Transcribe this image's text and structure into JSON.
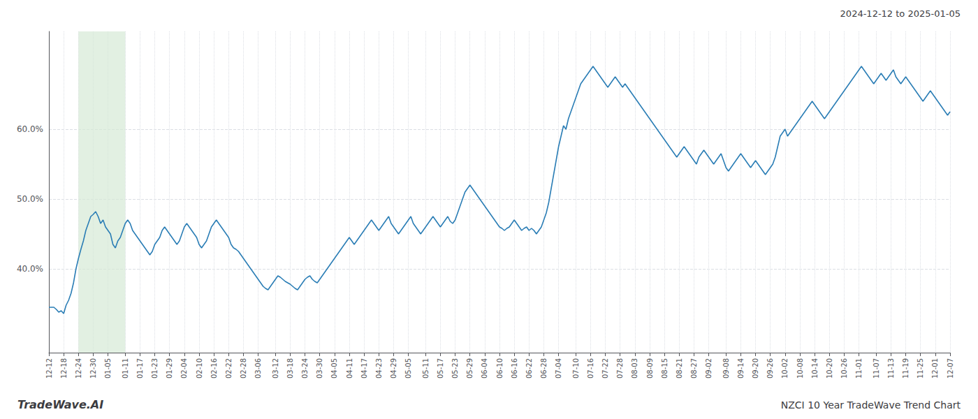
{
  "chart_data": {
    "type": "line",
    "title": "NZCI 10 Year TradeWave Trend Chart",
    "subtitle": "2024-12-12 to 2025-01-05",
    "annotations": [
      "TradeWave.AI"
    ],
    "color": "#2a7db5",
    "grid": true,
    "ylim": [
      28,
      74
    ],
    "yticks": [
      {
        "value": 40,
        "label": "40.0%"
      },
      {
        "value": 50,
        "label": "50.0%"
      },
      {
        "value": 60,
        "label": "60.0%"
      }
    ],
    "shade": {
      "from": "12-24",
      "to": "01-11",
      "color": "#d6ead6"
    },
    "categories": [
      "12-12",
      null,
      null,
      null,
      null,
      null,
      "12-18",
      null,
      null,
      null,
      null,
      null,
      "12-24",
      null,
      null,
      null,
      null,
      null,
      "12-30",
      null,
      null,
      null,
      null,
      null,
      "01-05",
      null,
      null,
      null,
      null,
      null,
      null,
      "01-11",
      null,
      null,
      null,
      null,
      null,
      "01-17",
      null,
      null,
      null,
      null,
      null,
      "01-23",
      null,
      null,
      null,
      null,
      null,
      "01-29",
      null,
      null,
      null,
      null,
      null,
      "02-04",
      null,
      null,
      null,
      null,
      null,
      "02-10",
      null,
      null,
      null,
      null,
      null,
      "02-16",
      null,
      null,
      null,
      null,
      null,
      "02-22",
      null,
      null,
      null,
      null,
      null,
      "02-28",
      null,
      null,
      null,
      null,
      null,
      "03-06",
      null,
      null,
      null,
      null,
      null,
      null,
      "03-12",
      null,
      null,
      null,
      null,
      null,
      "03-18",
      null,
      null,
      null,
      null,
      null,
      "03-24",
      null,
      null,
      null,
      null,
      null,
      "03-30",
      null,
      null,
      null,
      null,
      null,
      "04-05",
      null,
      null,
      null,
      null,
      null,
      "04-11",
      null,
      null,
      null,
      null,
      null,
      "04-17",
      null,
      null,
      null,
      null,
      null,
      "04-23",
      null,
      null,
      null,
      null,
      null,
      "04-29",
      null,
      null,
      null,
      null,
      null,
      "05-05",
      null,
      null,
      null,
      null,
      null,
      null,
      "05-11",
      null,
      null,
      null,
      null,
      null,
      "05-17",
      null,
      null,
      null,
      null,
      null,
      "05-23",
      null,
      null,
      null,
      null,
      null,
      "05-29",
      null,
      null,
      null,
      null,
      null,
      "06-04",
      null,
      null,
      null,
      null,
      null,
      "06-10",
      null,
      null,
      null,
      null,
      null,
      "06-16",
      null,
      null,
      null,
      null,
      null,
      "06-22",
      null,
      null,
      null,
      null,
      null,
      "06-28",
      null,
      null,
      null,
      null,
      null,
      "07-04",
      null,
      null,
      null,
      null,
      null,
      null,
      "07-10",
      null,
      null,
      null,
      null,
      null,
      "07-16",
      null,
      null,
      null,
      null,
      null,
      "07-22",
      null,
      null,
      null,
      null,
      null,
      "07-28",
      null,
      null,
      null,
      null,
      null,
      "08-03",
      null,
      null,
      null,
      null,
      null,
      "08-09",
      null,
      null,
      null,
      null,
      null,
      "08-15",
      null,
      null,
      null,
      null,
      null,
      "08-21",
      null,
      null,
      null,
      null,
      null,
      "08-27",
      null,
      null,
      null,
      null,
      null,
      "09-02",
      null,
      null,
      null,
      null,
      null,
      null,
      "09-08",
      null,
      null,
      null,
      null,
      null,
      "09-14",
      null,
      null,
      null,
      null,
      null,
      "09-20",
      null,
      null,
      null,
      null,
      null,
      "09-26",
      null,
      null,
      null,
      null,
      null,
      "10-02",
      null,
      null,
      null,
      null,
      null,
      "10-08",
      null,
      null,
      null,
      null,
      null,
      "10-14",
      null,
      null,
      null,
      null,
      null,
      "10-20",
      null,
      null,
      null,
      null,
      null,
      "10-26",
      null,
      null,
      null,
      null,
      null,
      "11-01",
      null,
      null,
      null,
      null,
      null,
      null,
      "11-07",
      null,
      null,
      null,
      null,
      null,
      "11-13",
      null,
      null,
      null,
      null,
      null,
      "11-19",
      null,
      null,
      null,
      null,
      null,
      "11-25",
      null,
      null,
      null,
      null,
      null,
      "12-01",
      null,
      null,
      null,
      null,
      null,
      "12-07"
    ],
    "values": [
      34.5,
      34.5,
      34.5,
      34.2,
      33.8,
      34.0,
      33.6,
      34.8,
      35.5,
      36.5,
      38.0,
      40.0,
      41.5,
      42.8,
      44.0,
      45.5,
      46.5,
      47.5,
      47.8,
      48.2,
      47.5,
      46.5,
      47.0,
      46.0,
      45.5,
      45.0,
      43.5,
      43.0,
      44.0,
      44.5,
      45.5,
      46.5,
      47.0,
      46.5,
      45.5,
      45.0,
      44.5,
      44.0,
      43.5,
      43.0,
      42.5,
      42.0,
      42.5,
      43.5,
      44.0,
      44.5,
      45.5,
      46.0,
      45.5,
      45.0,
      44.5,
      44.0,
      43.5,
      44.0,
      45.0,
      46.0,
      46.5,
      46.0,
      45.5,
      45.0,
      44.5,
      43.5,
      43.0,
      43.5,
      44.0,
      45.0,
      46.0,
      46.5,
      47.0,
      46.5,
      46.0,
      45.5,
      45.0,
      44.5,
      43.5,
      43.0,
      42.8,
      42.5,
      42.0,
      41.5,
      41.0,
      40.5,
      40.0,
      39.5,
      39.0,
      38.5,
      38.0,
      37.5,
      37.2,
      37.0,
      37.5,
      38.0,
      38.5,
      39.0,
      38.8,
      38.5,
      38.2,
      38.0,
      37.8,
      37.5,
      37.2,
      37.0,
      37.5,
      38.0,
      38.5,
      38.8,
      39.0,
      38.5,
      38.2,
      38.0,
      38.5,
      39.0,
      39.5,
      40.0,
      40.5,
      41.0,
      41.5,
      42.0,
      42.5,
      43.0,
      43.5,
      44.0,
      44.5,
      44.0,
      43.5,
      44.0,
      44.5,
      45.0,
      45.5,
      46.0,
      46.5,
      47.0,
      46.5,
      46.0,
      45.5,
      46.0,
      46.5,
      47.0,
      47.5,
      46.5,
      46.0,
      45.5,
      45.0,
      45.5,
      46.0,
      46.5,
      47.0,
      47.5,
      46.5,
      46.0,
      45.5,
      45.0,
      45.5,
      46.0,
      46.5,
      47.0,
      47.5,
      47.0,
      46.5,
      46.0,
      46.5,
      47.0,
      47.5,
      46.8,
      46.5,
      47.0,
      48.0,
      49.0,
      50.0,
      51.0,
      51.5,
      52.0,
      51.5,
      51.0,
      50.5,
      50.0,
      49.5,
      49.0,
      48.5,
      48.0,
      47.5,
      47.0,
      46.5,
      46.0,
      45.8,
      45.5,
      45.8,
      46.0,
      46.5,
      47.0,
      46.5,
      46.0,
      45.5,
      45.8,
      46.0,
      45.5,
      45.8,
      45.5,
      45.0,
      45.5,
      46.0,
      47.0,
      48.0,
      49.5,
      51.5,
      53.5,
      55.5,
      57.5,
      59.0,
      60.5,
      60.0,
      61.5,
      62.5,
      63.5,
      64.5,
      65.5,
      66.5,
      67.0,
      67.5,
      68.0,
      68.5,
      69.0,
      68.5,
      68.0,
      67.5,
      67.0,
      66.5,
      66.0,
      66.5,
      67.0,
      67.5,
      67.0,
      66.5,
      66.0,
      66.5,
      66.0,
      65.5,
      65.0,
      64.5,
      64.0,
      63.5,
      63.0,
      62.5,
      62.0,
      61.5,
      61.0,
      60.5,
      60.0,
      59.5,
      59.0,
      58.5,
      58.0,
      57.5,
      57.0,
      56.5,
      56.0,
      56.5,
      57.0,
      57.5,
      57.0,
      56.5,
      56.0,
      55.5,
      55.0,
      56.0,
      56.5,
      57.0,
      56.5,
      56.0,
      55.5,
      55.0,
      55.5,
      56.0,
      56.5,
      55.5,
      54.5,
      54.0,
      54.5,
      55.0,
      55.5,
      56.0,
      56.5,
      56.0,
      55.5,
      55.0,
      54.5,
      55.0,
      55.5,
      55.0,
      54.5,
      54.0,
      53.5,
      54.0,
      54.5,
      55.0,
      56.0,
      57.5,
      59.0,
      59.5,
      60.0,
      59.0,
      59.5,
      60.0,
      60.5,
      61.0,
      61.5,
      62.0,
      62.5,
      63.0,
      63.5,
      64.0,
      63.5,
      63.0,
      62.5,
      62.0,
      61.5,
      62.0,
      62.5,
      63.0,
      63.5,
      64.0,
      64.5,
      65.0,
      65.5,
      66.0,
      66.5,
      67.0,
      67.5,
      68.0,
      68.5,
      69.0,
      68.5,
      68.0,
      67.5,
      67.0,
      66.5,
      67.0,
      67.5,
      68.0,
      67.5,
      67.0,
      67.5,
      68.0,
      68.5,
      67.5,
      67.0,
      66.5,
      67.0,
      67.5,
      67.0,
      66.5,
      66.0,
      65.5,
      65.0,
      64.5,
      64.0,
      64.5,
      65.0,
      65.5,
      65.0,
      64.5,
      64.0,
      63.5,
      63.0,
      62.5,
      62.0,
      62.5
    ]
  }
}
